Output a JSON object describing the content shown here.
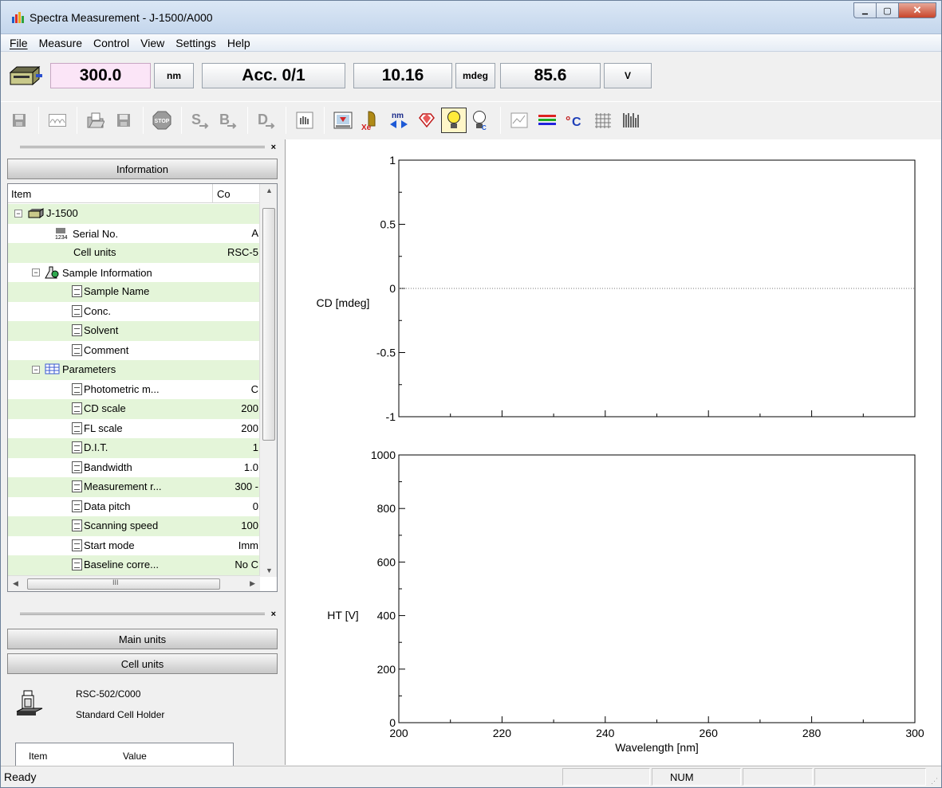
{
  "window": {
    "title": "Spectra Measurement - J-1500/A000",
    "minimize_label": "▁",
    "maximize_label": "▢",
    "close_label": "✕"
  },
  "menu": [
    "File",
    "Measure",
    "Control",
    "View",
    "Settings",
    "Help"
  ],
  "status_displays": {
    "wavelength": "300.0",
    "wavelength_unit": "nm",
    "accumulation": "Acc. 0/1",
    "cd_value": "10.16",
    "cd_unit": "mdeg",
    "ht_value": "85.6",
    "ht_unit": "V"
  },
  "toolbar_icons": [
    "save-icon",
    "spectrum-icon",
    "open-file-icon",
    "save-file-icon",
    "stop-icon",
    "sample-measure-icon",
    "baseline-measure-icon",
    "data-measure-icon",
    "manual-icon",
    "shutter-icon",
    "xe-lamp-icon",
    "wavelength-move-icon",
    "gem-icon",
    "lamp-icon",
    "lamp-info-icon",
    "graph-icon",
    "color-bars-icon",
    "temperature-icon",
    "grid-icon",
    "barcode-icon"
  ],
  "info_panel": {
    "close": "×",
    "header": "Information",
    "col_item": "Item",
    "col_content": "Co",
    "rows": [
      {
        "label": "J-1500",
        "value": ""
      },
      {
        "label": "Serial No.",
        "value": "A"
      },
      {
        "label": "Cell units",
        "value": "RSC-5"
      },
      {
        "label": "Sample Information",
        "value": ""
      },
      {
        "label": "Sample Name",
        "value": ""
      },
      {
        "label": "Conc.",
        "value": ""
      },
      {
        "label": "Solvent",
        "value": ""
      },
      {
        "label": "Comment",
        "value": ""
      },
      {
        "label": "Parameters",
        "value": ""
      },
      {
        "label": "Photometric m...",
        "value": "C"
      },
      {
        "label": "CD scale",
        "value": "200"
      },
      {
        "label": "FL scale",
        "value": "200"
      },
      {
        "label": "D.I.T.",
        "value": "1"
      },
      {
        "label": "Bandwidth",
        "value": "1.0"
      },
      {
        "label": "Measurement r...",
        "value": "300 -"
      },
      {
        "label": "Data pitch",
        "value": "0"
      },
      {
        "label": "Scanning speed",
        "value": "100"
      },
      {
        "label": "Start mode",
        "value": "Imm"
      },
      {
        "label": "Baseline corre...",
        "value": "No C"
      }
    ],
    "hscroll_mid": "III"
  },
  "units_panel": {
    "close": "×",
    "main_units": "Main units",
    "cell_units": "Cell units",
    "cell_model": "RSC-502/C000",
    "cell_desc": "Standard Cell Holder",
    "col_item": "Item",
    "col_value": "Value"
  },
  "chart_data": [
    {
      "type": "line",
      "ylabel": "CD [mdeg]",
      "xlim": [
        200,
        300
      ],
      "ylim": [
        -1,
        1
      ],
      "yticks": [
        "1",
        "0.5",
        "0",
        "-0.5",
        "-1"
      ],
      "series": []
    },
    {
      "type": "line",
      "ylabel": "HT [V]",
      "xlabel": "Wavelength [nm]",
      "xlim": [
        200,
        300
      ],
      "ylim": [
        0,
        1000
      ],
      "xticks": [
        "200",
        "220",
        "240",
        "260",
        "280",
        "300"
      ],
      "yticks": [
        "1000",
        "800",
        "600",
        "400",
        "200",
        "0"
      ],
      "series": []
    }
  ],
  "statusbar": {
    "text": "Ready",
    "num": "NUM"
  }
}
